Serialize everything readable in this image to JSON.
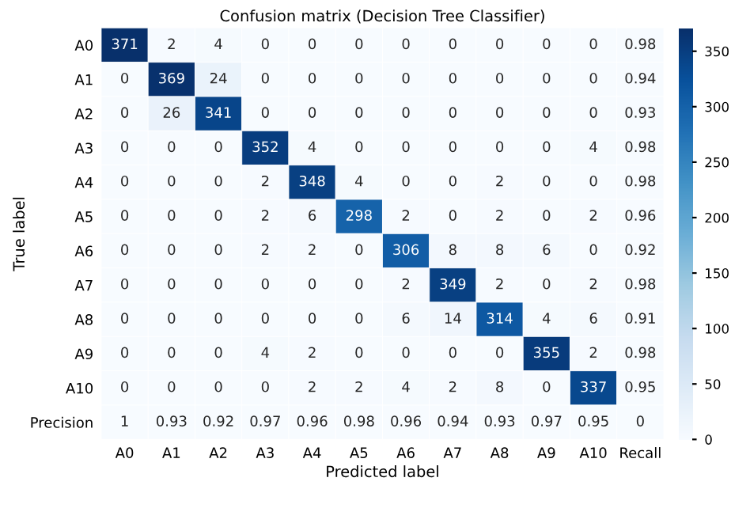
{
  "chart_data": {
    "type": "heatmap",
    "title": "Confusion matrix (Decision Tree Classifier)",
    "xlabel": "Predicted label",
    "ylabel": "True label",
    "categories": [
      "A0",
      "A1",
      "A2",
      "A3",
      "A4",
      "A5",
      "A6",
      "A7",
      "A8",
      "A9",
      "A10",
      "Recall"
    ],
    "y_categories": [
      "A0",
      "A1",
      "A2",
      "A3",
      "A4",
      "A5",
      "A6",
      "A7",
      "A8",
      "A9",
      "A10",
      "Precision"
    ],
    "cells": [
      [
        371,
        2,
        4,
        0,
        0,
        0,
        0,
        0,
        0,
        0,
        0,
        0.98
      ],
      [
        0,
        369,
        24,
        0,
        0,
        0,
        0,
        0,
        0,
        0,
        0,
        0.94
      ],
      [
        0,
        26,
        341,
        0,
        0,
        0,
        0,
        0,
        0,
        0,
        0,
        0.93
      ],
      [
        0,
        0,
        0,
        352,
        4,
        0,
        0,
        0,
        0,
        0,
        4,
        0.98
      ],
      [
        0,
        0,
        0,
        2,
        348,
        4,
        0,
        0,
        2,
        0,
        0,
        0.98
      ],
      [
        0,
        0,
        0,
        2,
        6,
        298,
        2,
        0,
        2,
        0,
        2,
        0.96
      ],
      [
        0,
        0,
        0,
        2,
        2,
        0,
        306,
        8,
        8,
        6,
        0,
        0.92
      ],
      [
        0,
        0,
        0,
        0,
        0,
        0,
        2,
        349,
        2,
        0,
        2,
        0.98
      ],
      [
        0,
        0,
        0,
        0,
        0,
        0,
        6,
        14,
        314,
        4,
        6,
        0.91
      ],
      [
        0,
        0,
        0,
        4,
        2,
        0,
        0,
        0,
        0,
        355,
        2,
        0.98
      ],
      [
        0,
        0,
        0,
        0,
        2,
        2,
        4,
        2,
        8,
        0,
        337,
        0.95
      ],
      [
        1,
        0.93,
        0.92,
        0.97,
        0.96,
        0.98,
        0.96,
        0.94,
        0.93,
        0.97,
        0.95,
        0
      ]
    ],
    "clim": [
      0,
      371
    ],
    "cticks": [
      0,
      50,
      100,
      150,
      200,
      250,
      300,
      350
    ],
    "data_labels": true
  }
}
